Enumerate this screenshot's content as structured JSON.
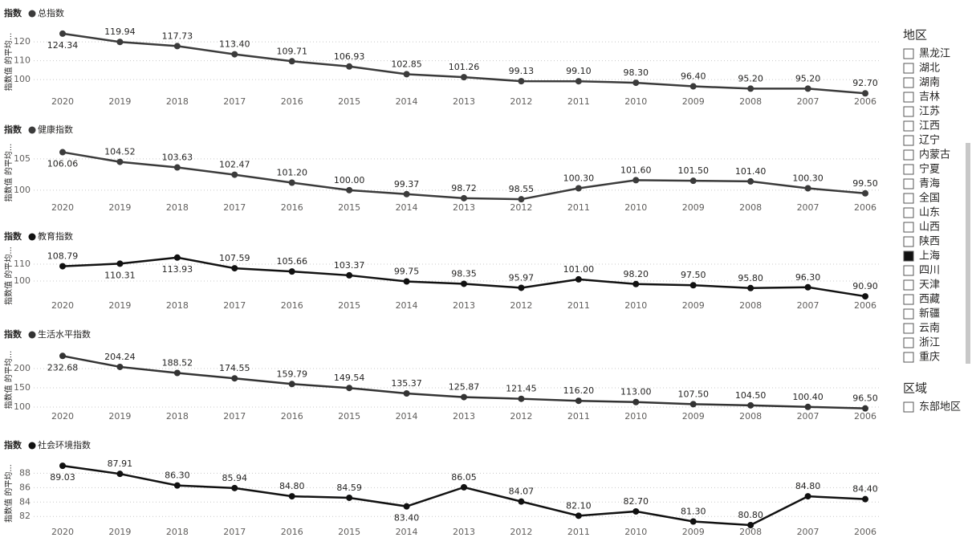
{
  "chart_data": [
    {
      "type": "line",
      "title": "指数",
      "y_label": "指数值 的平均...",
      "categories": [
        "2020",
        "2019",
        "2018",
        "2017",
        "2016",
        "2015",
        "2014",
        "2013",
        "2012",
        "2011",
        "2010",
        "2009",
        "2008",
        "2007",
        "2006"
      ],
      "series": [
        {
          "name": "总指数",
          "color": "#3b3b3b",
          "values": [
            124.34,
            119.94,
            117.73,
            113.4,
            109.71,
            106.93,
            102.85,
            101.26,
            99.13,
            99.1,
            98.3,
            96.4,
            95.2,
            95.2,
            92.7
          ],
          "value_labels": [
            "124.34",
            "119.94",
            "117.73",
            "113.40",
            "109.71",
            "106.93",
            "102.85",
            "101.26",
            "99.13",
            "99.10",
            "98.30",
            "96.40",
            "95.20",
            "95.20",
            "92.70"
          ]
        }
      ],
      "ylim": [
        92.8,
        126
      ],
      "yticks": [
        100,
        110,
        120
      ],
      "grid": true
    },
    {
      "type": "line",
      "title": "指数",
      "y_label": "指数值 的平均...",
      "categories": [
        "2020",
        "2019",
        "2018",
        "2017",
        "2016",
        "2015",
        "2014",
        "2013",
        "2012",
        "2011",
        "2010",
        "2009",
        "2008",
        "2007",
        "2006"
      ],
      "series": [
        {
          "name": "健康指数",
          "color": "#3b3b3b",
          "values": [
            106.06,
            104.52,
            103.63,
            102.47,
            101.2,
            100,
            99.37,
            98.72,
            98.55,
            100.3,
            101.6,
            101.5,
            101.4,
            100.3,
            99.5
          ],
          "value_labels": [
            "106.06",
            "104.52",
            "103.63",
            "102.47",
            "101.20",
            "100.00",
            "99.37",
            "98.72",
            "98.55",
            "100.30",
            "101.60",
            "101.50",
            "101.40",
            "100.30",
            "99.50"
          ]
        }
      ],
      "ylim": [
        98.7,
        106.9
      ],
      "yticks": [
        100,
        105
      ],
      "grid": true
    },
    {
      "type": "line",
      "title": "指数",
      "y_label": "指数值 的平均...",
      "categories": [
        "2020",
        "2019",
        "2018",
        "2017",
        "2016",
        "2015",
        "2014",
        "2013",
        "2012",
        "2011",
        "2010",
        "2009",
        "2008",
        "2007",
        "2006"
      ],
      "series": [
        {
          "name": "教育指数",
          "color": "#111111",
          "values": [
            108.79,
            110.31,
            113.93,
            107.59,
            105.66,
            103.37,
            99.75,
            98.35,
            95.97,
            101,
            98.2,
            97.5,
            95.8,
            96.3,
            90.9
          ],
          "value_labels": [
            "108.79",
            "110.31",
            "113.93",
            "107.59",
            "105.66",
            "103.37",
            "99.75",
            "98.35",
            "95.97",
            "101.00",
            "98.20",
            "97.50",
            "95.80",
            "96.30",
            "90.90"
          ]
        }
      ],
      "ylim": [
        89.5,
        116.7
      ],
      "yticks": [
        100,
        110
      ],
      "grid": true
    },
    {
      "type": "line",
      "title": "指数",
      "y_label": "指数值 的平均...",
      "categories": [
        "2020",
        "2019",
        "2018",
        "2017",
        "2016",
        "2015",
        "2014",
        "2013",
        "2012",
        "2011",
        "2010",
        "2009",
        "2008",
        "2007",
        "2006"
      ],
      "series": [
        {
          "name": "生活水平指数",
          "color": "#333333",
          "values": [
            232.68,
            204.24,
            188.52,
            174.55,
            159.79,
            149.54,
            135.37,
            125.87,
            121.45,
            116.2,
            113,
            107.5,
            104.5,
            100.4,
            96.5
          ],
          "value_labels": [
            "232.68",
            "204.24",
            "188.52",
            "174.55",
            "159.79",
            "149.54",
            "135.37",
            "125.87",
            "121.45",
            "116.20",
            "113.00",
            "107.50",
            "104.50",
            "100.40",
            "96.50"
          ]
        }
      ],
      "ylim": [
        95.8,
        245.8
      ],
      "yticks": [
        100,
        150,
        200
      ],
      "grid": true
    },
    {
      "type": "line",
      "title": "指数",
      "y_label": "指数值 的平均...",
      "categories": [
        "2020",
        "2019",
        "2018",
        "2017",
        "2016",
        "2015",
        "2014",
        "2013",
        "2012",
        "2011",
        "2010",
        "2009",
        "2008",
        "2007",
        "2006"
      ],
      "series": [
        {
          "name": "社会环境指数",
          "color": "#111111",
          "values": [
            89.03,
            87.91,
            86.3,
            85.94,
            84.8,
            84.59,
            83.4,
            86.05,
            84.07,
            82.1,
            82.7,
            81.3,
            80.8,
            84.8,
            84.4
          ],
          "value_labels": [
            "89.03",
            "87.91",
            "86.30",
            "85.94",
            "84.80",
            "84.59",
            "83.40",
            "86.05",
            "84.07",
            "82.10",
            "82.70",
            "81.30",
            "80.80",
            "84.80",
            "84.40"
          ]
        }
      ],
      "ylim": [
        80.8,
        89.6
      ],
      "yticks": [
        82,
        84,
        86,
        88
      ],
      "grid": true
    }
  ],
  "slicers": [
    {
      "title": "地区",
      "items": [
        {
          "label": "黑龙江",
          "checked": false
        },
        {
          "label": "湖北",
          "checked": false
        },
        {
          "label": "湖南",
          "checked": false
        },
        {
          "label": "吉林",
          "checked": false
        },
        {
          "label": "江苏",
          "checked": false
        },
        {
          "label": "江西",
          "checked": false
        },
        {
          "label": "辽宁",
          "checked": false
        },
        {
          "label": "内蒙古",
          "checked": false
        },
        {
          "label": "宁夏",
          "checked": false
        },
        {
          "label": "青海",
          "checked": false
        },
        {
          "label": "全国",
          "checked": false
        },
        {
          "label": "山东",
          "checked": false
        },
        {
          "label": "山西",
          "checked": false
        },
        {
          "label": "陕西",
          "checked": false
        },
        {
          "label": "上海",
          "checked": true
        },
        {
          "label": "四川",
          "checked": false
        },
        {
          "label": "天津",
          "checked": false
        },
        {
          "label": "西藏",
          "checked": false
        },
        {
          "label": "新疆",
          "checked": false
        },
        {
          "label": "云南",
          "checked": false
        },
        {
          "label": "浙江",
          "checked": false
        },
        {
          "label": "重庆",
          "checked": false
        }
      ]
    },
    {
      "title": "区域",
      "items": [
        {
          "label": "东部地区",
          "checked": false
        }
      ]
    }
  ]
}
